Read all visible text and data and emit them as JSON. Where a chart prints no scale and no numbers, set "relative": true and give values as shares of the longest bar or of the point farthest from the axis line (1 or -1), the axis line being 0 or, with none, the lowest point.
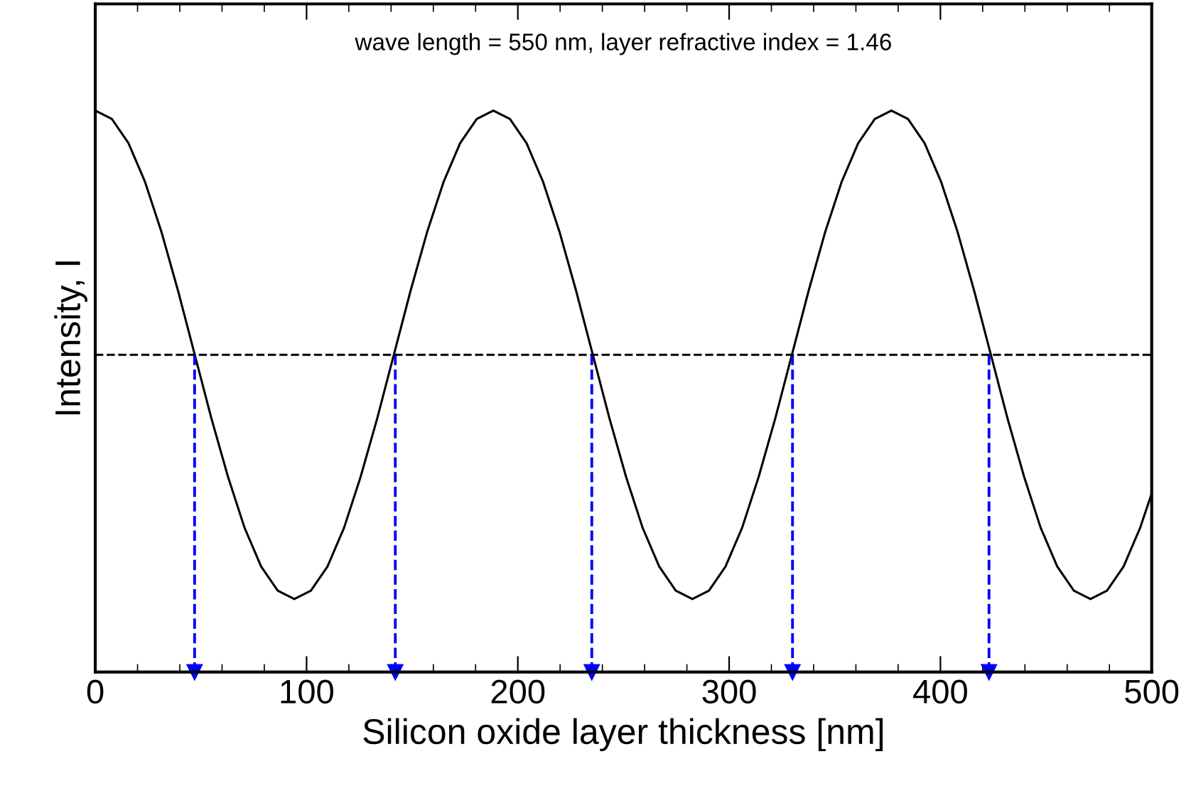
{
  "chart_data": {
    "type": "line",
    "relative": true,
    "xlabel": "Silicon oxide layer thickness [nm]",
    "ylabel": "Intensity, I",
    "xlim": [
      0,
      500
    ],
    "xticks": [
      0,
      100,
      200,
      300,
      400,
      500
    ],
    "annotations": [
      "wave length = 550 nm, layer refractive index = 1.46"
    ],
    "ref_lines": [
      {
        "axis": "y",
        "value": 0.565,
        "color": "#000000",
        "line_style": "dashed"
      }
    ],
    "series": [
      {
        "color": "#000000",
        "line_style": "solid",
        "marker": "none",
        "x": [
          0,
          7.85,
          15.7,
          23.55,
          31.4,
          39.25,
          47.1,
          54.95,
          62.8,
          70.65,
          78.5,
          86.35,
          94.2,
          102.05,
          109.9,
          117.75,
          125.6,
          133.45,
          141.3,
          149.15,
          157,
          164.85,
          172.7,
          180.55,
          188.4,
          196.25,
          204.1,
          211.95,
          219.8,
          227.65,
          235.5,
          243.35,
          251.2,
          259.05,
          266.9,
          274.75,
          282.6,
          290.45,
          298.3,
          306.15,
          314,
          321.85,
          329.7,
          337.55,
          345.4,
          353.25,
          361.1,
          368.95,
          376.8,
          384.65,
          392.5,
          400.35,
          408.2,
          416.05,
          423.9,
          431.75,
          439.6,
          447.45,
          455.3,
          463.15,
          471,
          478.85,
          486.7,
          494.55,
          500
        ],
        "values": [
          1,
          0.985,
          0.942,
          0.873,
          0.783,
          0.678,
          0.565,
          0.452,
          0.348,
          0.257,
          0.188,
          0.145,
          0.13,
          0.145,
          0.188,
          0.257,
          0.348,
          0.452,
          0.565,
          0.678,
          0.783,
          0.873,
          0.942,
          0.985,
          1,
          0.985,
          0.942,
          0.873,
          0.783,
          0.678,
          0.565,
          0.452,
          0.348,
          0.257,
          0.188,
          0.145,
          0.13,
          0.145,
          0.188,
          0.257,
          0.348,
          0.452,
          0.565,
          0.678,
          0.783,
          0.873,
          0.942,
          0.985,
          1,
          0.985,
          0.942,
          0.873,
          0.783,
          0.678,
          0.565,
          0.452,
          0.348,
          0.257,
          0.188,
          0.145,
          0.13,
          0.145,
          0.188,
          0.257,
          0.318
        ]
      },
      {
        "color": "#0000ff",
        "line_style": "dashed",
        "marker": "triangle",
        "x": [
          47,
          47
        ],
        "values": [
          0.565,
          0
        ]
      },
      {
        "color": "#0000ff",
        "line_style": "dashed",
        "marker": "triangle",
        "x": [
          142,
          142
        ],
        "values": [
          0.565,
          0
        ]
      },
      {
        "color": "#0000ff",
        "line_style": "dashed",
        "marker": "triangle",
        "x": [
          235,
          235
        ],
        "values": [
          0.565,
          0
        ]
      },
      {
        "color": "#0000ff",
        "line_style": "dashed",
        "marker": "triangle",
        "x": [
          330,
          330
        ],
        "values": [
          0.565,
          0
        ]
      },
      {
        "color": "#0000ff",
        "line_style": "dashed",
        "marker": "triangle",
        "x": [
          423,
          423
        ],
        "values": [
          0.565,
          0
        ]
      }
    ]
  }
}
